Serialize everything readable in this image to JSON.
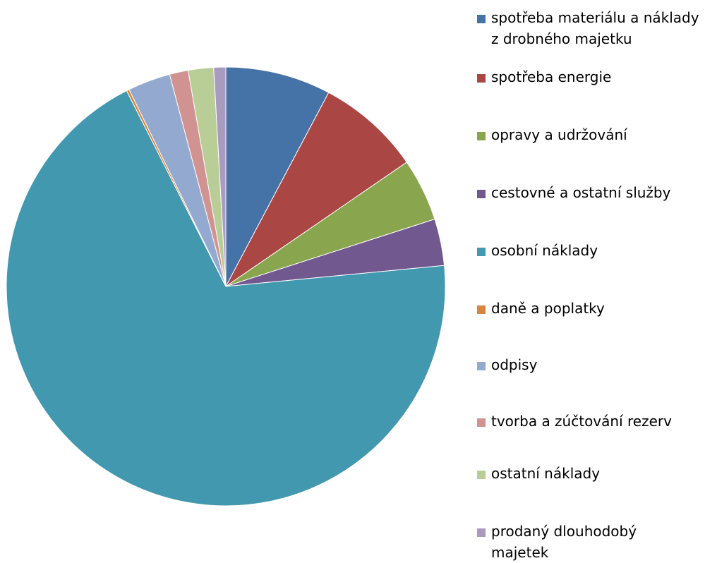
{
  "chart_data": {
    "type": "pie",
    "slices": [
      {
        "label": "spotřeba materiálu a náklady\nz drobného majetku",
        "value": 7.9,
        "color": "#4572A7"
      },
      {
        "label": "spotřeba energie",
        "value": 7.8,
        "color": "#AA4643"
      },
      {
        "label": "opravy a udržování",
        "value": 4.7,
        "color": "#89A54E"
      },
      {
        "label": "cestovné a ostatní služby",
        "value": 3.5,
        "color": "#71588F"
      },
      {
        "label": "osobní náklady",
        "value": 70.3,
        "color": "#4198AF"
      },
      {
        "label": "daně a poplatky",
        "value": 0.2,
        "color": "#DB843D"
      },
      {
        "label": "odpisy",
        "value": 3.2,
        "color": "#93A9CF"
      },
      {
        "label": "tvorba a zúčtování rezerv",
        "value": 1.4,
        "color": "#D19392"
      },
      {
        "label": "ostatní náklady",
        "value": 1.9,
        "color": "#B9CD96"
      },
      {
        "label": "prodaný dlouhodobý\nmajetek",
        "value": 0.9,
        "color": "#A99BBD"
      }
    ],
    "start_angle_deg": 0,
    "direction": "clockwise",
    "legend_position": "right"
  }
}
